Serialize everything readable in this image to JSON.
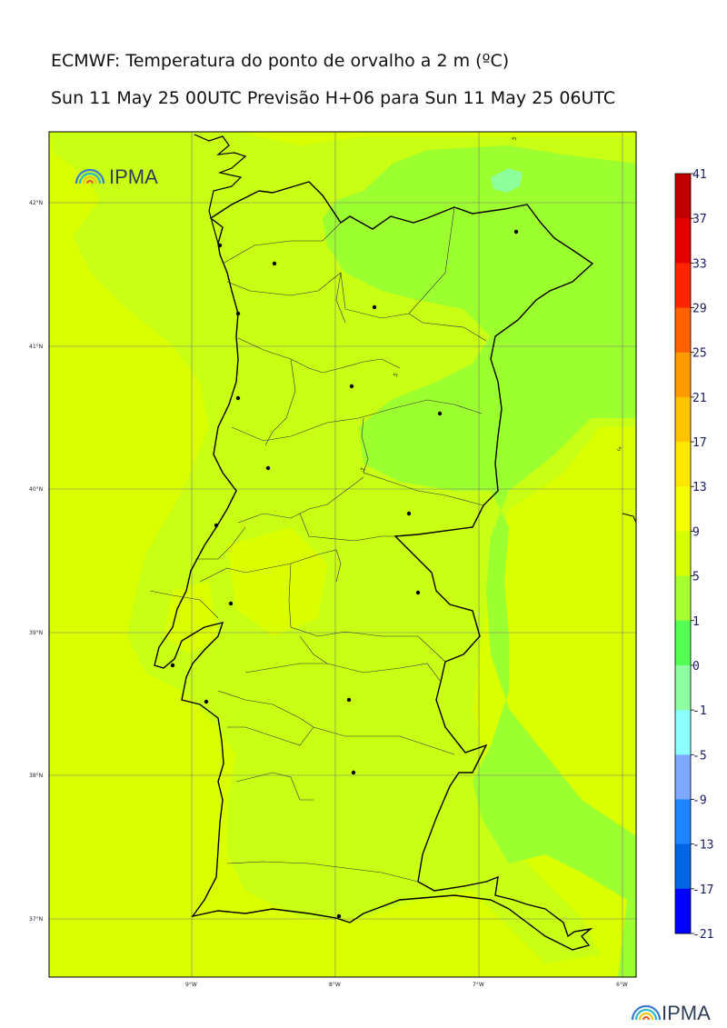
{
  "header": {
    "title": "ECMWF: Temperatura do ponto de orvalho a 2 m (ºC)",
    "subtitle": "Sun 11 May 25 00UTC Previsão H+06 para Sun 11 May 25 06UTC"
  },
  "map": {
    "lat_labels": [
      "42°N",
      "41°N",
      "40°N",
      "39°N",
      "38°N",
      "37°N"
    ],
    "lon_labels": [
      "9°W",
      "8°W",
      "7°W",
      "6°W"
    ],
    "contour_labels": [
      "5",
      "5",
      "5",
      "5"
    ],
    "colors": {
      "band_9_13": "#d9ff00",
      "band_5_9": "#c5ff1f",
      "band_1_5": "#97ff30",
      "band_0_1": "#8dff9b",
      "outline": "#000000"
    }
  },
  "colorbar": {
    "labels": [
      "41",
      "37",
      "33",
      "29",
      "25",
      "21",
      "17",
      "13",
      "9",
      "5",
      "1",
      "0",
      "-1",
      "-5",
      "-9",
      "-13",
      "-17",
      "-21"
    ],
    "colors": [
      "#c00000",
      "#e20000",
      "#ff2400",
      "#ff6100",
      "#ff9a00",
      "#ffc400",
      "#ffe800",
      "#f6ff00",
      "#d6ff00",
      "#a6ff2f",
      "#52ff52",
      "#8dffa0",
      "#8cffff",
      "#7ea8ff",
      "#1d85ff",
      "#0065e0",
      "#0000ff",
      "#8b00ff"
    ]
  },
  "logos": {
    "top_logo_text": "IPMA",
    "bottom_logo_text": "IPMA"
  }
}
